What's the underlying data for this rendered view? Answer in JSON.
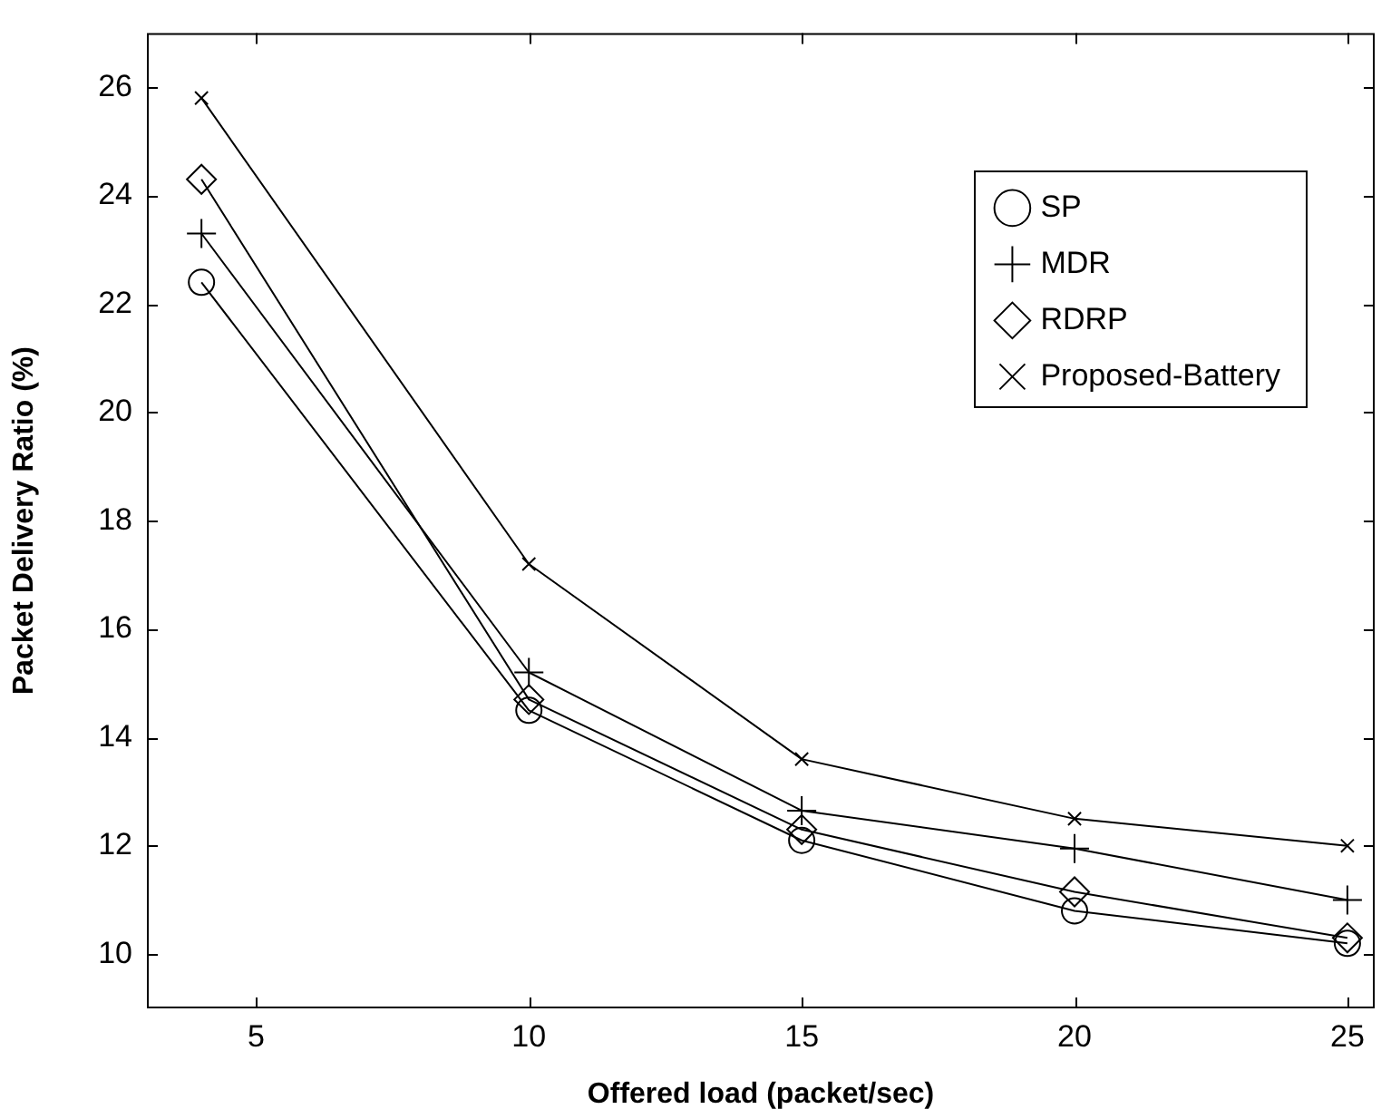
{
  "chart_data": {
    "type": "line",
    "xlabel": "Offered load (packet/sec)",
    "ylabel": "Packet Delivery Ratio (%)",
    "x": [
      4,
      10,
      15,
      20,
      25
    ],
    "series": [
      {
        "name": "SP",
        "color": "#000000",
        "marker": "circle",
        "values": [
          22.4,
          14.5,
          12.1,
          10.8,
          10.2
        ]
      },
      {
        "name": "MDR",
        "color": "#000000",
        "marker": "cross",
        "values": [
          23.3,
          15.2,
          12.65,
          11.95,
          11.0
        ]
      },
      {
        "name": "RDRP",
        "color": "#000000",
        "marker": "diamond",
        "values": [
          24.3,
          14.7,
          12.3,
          11.15,
          10.3
        ]
      },
      {
        "name": "Proposed-Battery",
        "color": "#000000",
        "marker": "x",
        "values": [
          25.8,
          17.2,
          13.6,
          12.5,
          12.0
        ]
      }
    ],
    "xlim": [
      3,
      25.5
    ],
    "xticks": [
      5,
      10,
      15,
      20,
      25
    ],
    "ylim": [
      9,
      27
    ],
    "yticks": [
      10,
      12,
      14,
      16,
      18,
      20,
      22,
      24,
      26
    ],
    "grid": false,
    "legend": "top right",
    "line_style": "solid"
  }
}
